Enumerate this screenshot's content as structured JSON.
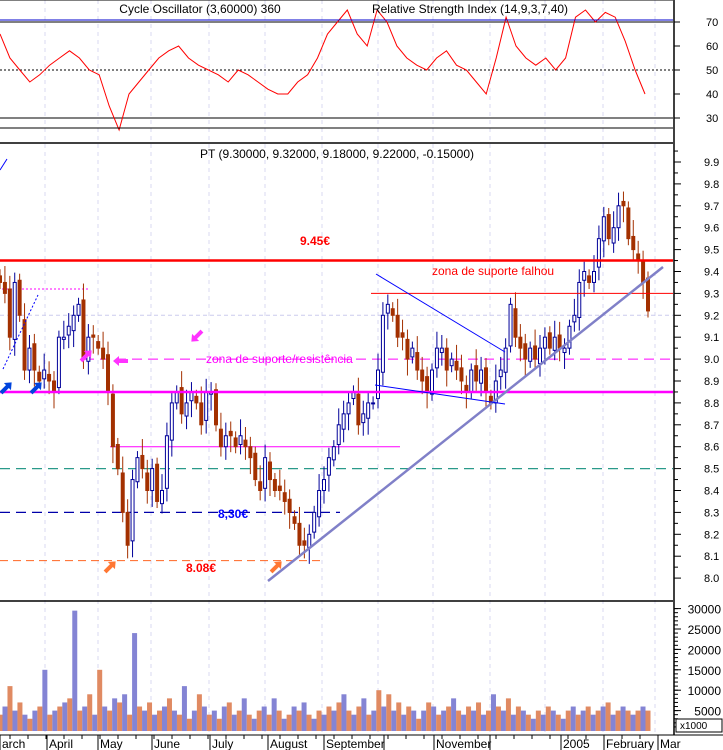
{
  "chart_data": [
    {
      "type": "line",
      "panel": "oscillator",
      "title": "Cycle Oscillator (3,60000) 360",
      "title_overlap": "Relative Strength Index (14,9,3,7,40)",
      "y_ticks": [
        30,
        40,
        50,
        60,
        70
      ],
      "ylim": [
        25,
        75
      ],
      "reference_lines": [
        70,
        50,
        30
      ],
      "values": [
        65,
        55,
        50,
        45,
        48,
        52,
        55,
        58,
        55,
        50,
        48,
        35,
        25,
        40,
        45,
        50,
        55,
        58,
        60,
        55,
        52,
        50,
        48,
        45,
        50,
        48,
        45,
        42,
        40,
        40,
        45,
        48,
        55,
        65,
        70,
        75,
        65,
        60,
        75,
        70,
        60,
        55,
        52,
        50,
        55,
        58,
        52,
        50,
        45,
        40,
        55,
        72,
        60,
        55,
        52,
        55,
        50,
        55,
        72,
        75,
        70,
        74,
        72,
        62,
        50,
        40
      ],
      "color": "#ff0000"
    },
    {
      "type": "candlestick",
      "panel": "price",
      "title": "PT (9.30000, 9.32000, 9.18000, 9.22000, -0.15000)",
      "y_ticks": [
        "8.0",
        "8.1",
        "8.2",
        "8.3",
        "8.4",
        "8.5",
        "8.6",
        "8.7",
        "8.8",
        "8.9",
        "9.0",
        "9.1",
        "9.2",
        "9.3",
        "9.4",
        "9.5",
        "9.6",
        "9.7",
        "9.8",
        "9.9"
      ],
      "ylim": [
        7.95,
        9.95
      ],
      "close": [
        9.35,
        9.3,
        9.1,
        9.35,
        9.2,
        8.95,
        9.05,
        8.95,
        8.9,
        8.95,
        8.9,
        8.85,
        9.1,
        9.1,
        9.15,
        9.2,
        9.25,
        9.0,
        9.1,
        9.1,
        9.05,
        9.0,
        8.85,
        8.6,
        8.5,
        8.3,
        8.15,
        8.45,
        8.55,
        8.5,
        8.4,
        8.5,
        8.35,
        8.4,
        8.65,
        8.8,
        8.85,
        8.75,
        8.8,
        8.85,
        8.8,
        8.7,
        8.85,
        8.85,
        8.7,
        8.6,
        8.65,
        8.65,
        8.6,
        8.65,
        8.6,
        8.55,
        8.45,
        8.4,
        8.55,
        8.45,
        8.4,
        8.4,
        8.35,
        8.3,
        8.25,
        8.15,
        8.15,
        8.2,
        8.3,
        8.4,
        8.45,
        8.55,
        8.6,
        8.7,
        8.75,
        8.8,
        8.85,
        8.7,
        8.75,
        8.8,
        8.8,
        8.95,
        9.2,
        9.25,
        9.2,
        9.1,
        9.1,
        9.0,
        9.05,
        8.95,
        8.9,
        8.85,
        8.95,
        9.05,
        9.05,
        8.95,
        9.0,
        8.95,
        8.9,
        8.85,
        8.95,
        8.9,
        8.95,
        8.85,
        8.8,
        8.9,
        8.95,
        9.05,
        9.25,
        9.1,
        9.05,
        9.0,
        9.05,
        9.0,
        9.05,
        9.1,
        9.05,
        9.1,
        9.05,
        9.05,
        9.15,
        9.2,
        9.35,
        9.4,
        9.35,
        9.4,
        9.55,
        9.65,
        9.55,
        9.6,
        9.7,
        9.7,
        9.55,
        9.5,
        9.45,
        9.35,
        9.22
      ],
      "up_color": "#000099",
      "down_color": "#a33000",
      "annotations": {
        "resistance_label": "9.45€",
        "support_failed_label": "zona de suporte falhou",
        "zone_label": "zona de suporte/resistência",
        "level_830_label": "8,30€",
        "level_808_label": "8.08€"
      },
      "levels": {
        "resistance": 9.45,
        "failed_support": 9.3,
        "zone_top": 9.0,
        "zone": 8.85,
        "level_860": 8.6,
        "level_850": 8.5,
        "level_830": 8.3,
        "level_808": 8.08,
        "last": 9.2
      }
    },
    {
      "type": "bar",
      "panel": "volume",
      "y_ticks": [
        "5000",
        "10000",
        "15000",
        "20000",
        "25000",
        "30000"
      ],
      "y_unit": "x1000",
      "ylim": [
        0,
        31000
      ],
      "values": [
        4000,
        6000,
        11000,
        5000,
        7000,
        4000,
        3000,
        5000,
        6000,
        15000,
        4000,
        5000,
        6000,
        7000,
        8000,
        29500,
        5000,
        6000,
        9000,
        4000,
        15000,
        6000,
        5000,
        8000,
        7000,
        9000,
        4000,
        24000,
        6000,
        5000,
        7000,
        4000,
        5000,
        6000,
        8000,
        5000,
        4000,
        11000,
        3000,
        5000,
        9000,
        6000,
        4000,
        5000,
        3000,
        6000,
        7000,
        4000,
        5000,
        8000,
        4000,
        3000,
        5000,
        6000,
        4000,
        8000,
        5000,
        3000,
        4000,
        6000,
        5000,
        7000,
        4000,
        3000,
        5000,
        4000,
        6000,
        5000,
        7000,
        9000,
        5000,
        4000,
        6000,
        8000,
        4000,
        5000,
        10000,
        6000,
        9000,
        5000,
        7000,
        4000,
        6000,
        5000,
        3000,
        5000,
        7000,
        6000,
        4000,
        5000,
        6000,
        8000,
        5000,
        4000,
        6000,
        5000,
        7000,
        4000,
        5000,
        9000,
        6000,
        5000,
        8000,
        4000,
        6000,
        5000,
        4000,
        3000,
        5000,
        4000,
        6000,
        5000,
        4000,
        3000,
        5000,
        6000,
        4000,
        5000,
        6000,
        4000,
        5000,
        6000,
        7000,
        4000,
        5000,
        6000,
        5000,
        4000,
        5000,
        6000,
        5000
      ],
      "colors": [
        "#e08a62",
        "#8484d4"
      ]
    }
  ],
  "x_axis": {
    "labels": [
      "arch",
      "April",
      "May",
      "June",
      "July",
      "August",
      "September",
      "November",
      "2005",
      "February",
      "Mar"
    ]
  }
}
